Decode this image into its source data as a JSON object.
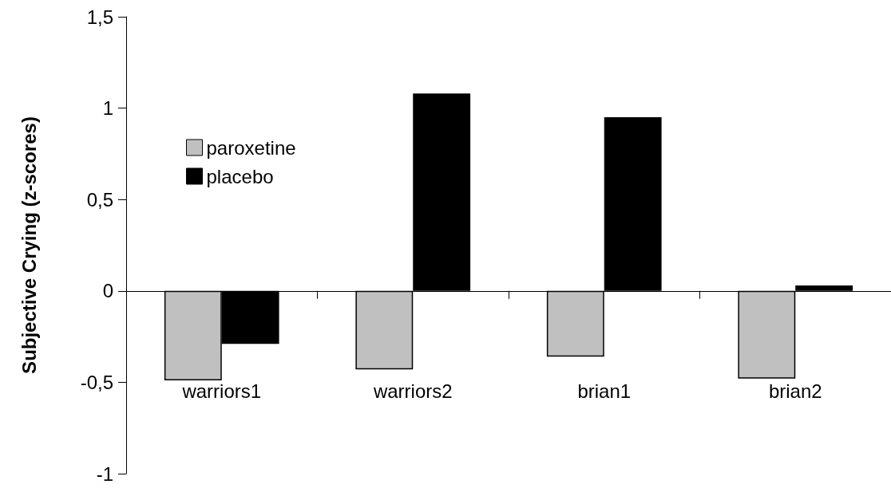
{
  "chart_data": {
    "type": "bar",
    "ylabel": "Subjective Crying (z-scores)",
    "categories": [
      "warriors1",
      "warriors2",
      "brian1",
      "brian2"
    ],
    "series": [
      {
        "name": "paroxetine",
        "color": "#c0c0c0",
        "values": [
          -0.49,
          -0.43,
          -0.36,
          -0.48
        ]
      },
      {
        "name": "placebo",
        "color": "#000000",
        "values": [
          -0.29,
          1.08,
          0.95,
          0.03
        ]
      }
    ],
    "ylim": [
      -1,
      1.5
    ],
    "yticks": [
      {
        "value": -1,
        "label": "-1"
      },
      {
        "value": -0.5,
        "label": "-0,5"
      },
      {
        "value": 0,
        "label": "0"
      },
      {
        "value": 0.5,
        "label": "0,5"
      },
      {
        "value": 1,
        "label": "1"
      },
      {
        "value": 1.5,
        "label": "1,5"
      }
    ],
    "legend": "top left"
  }
}
